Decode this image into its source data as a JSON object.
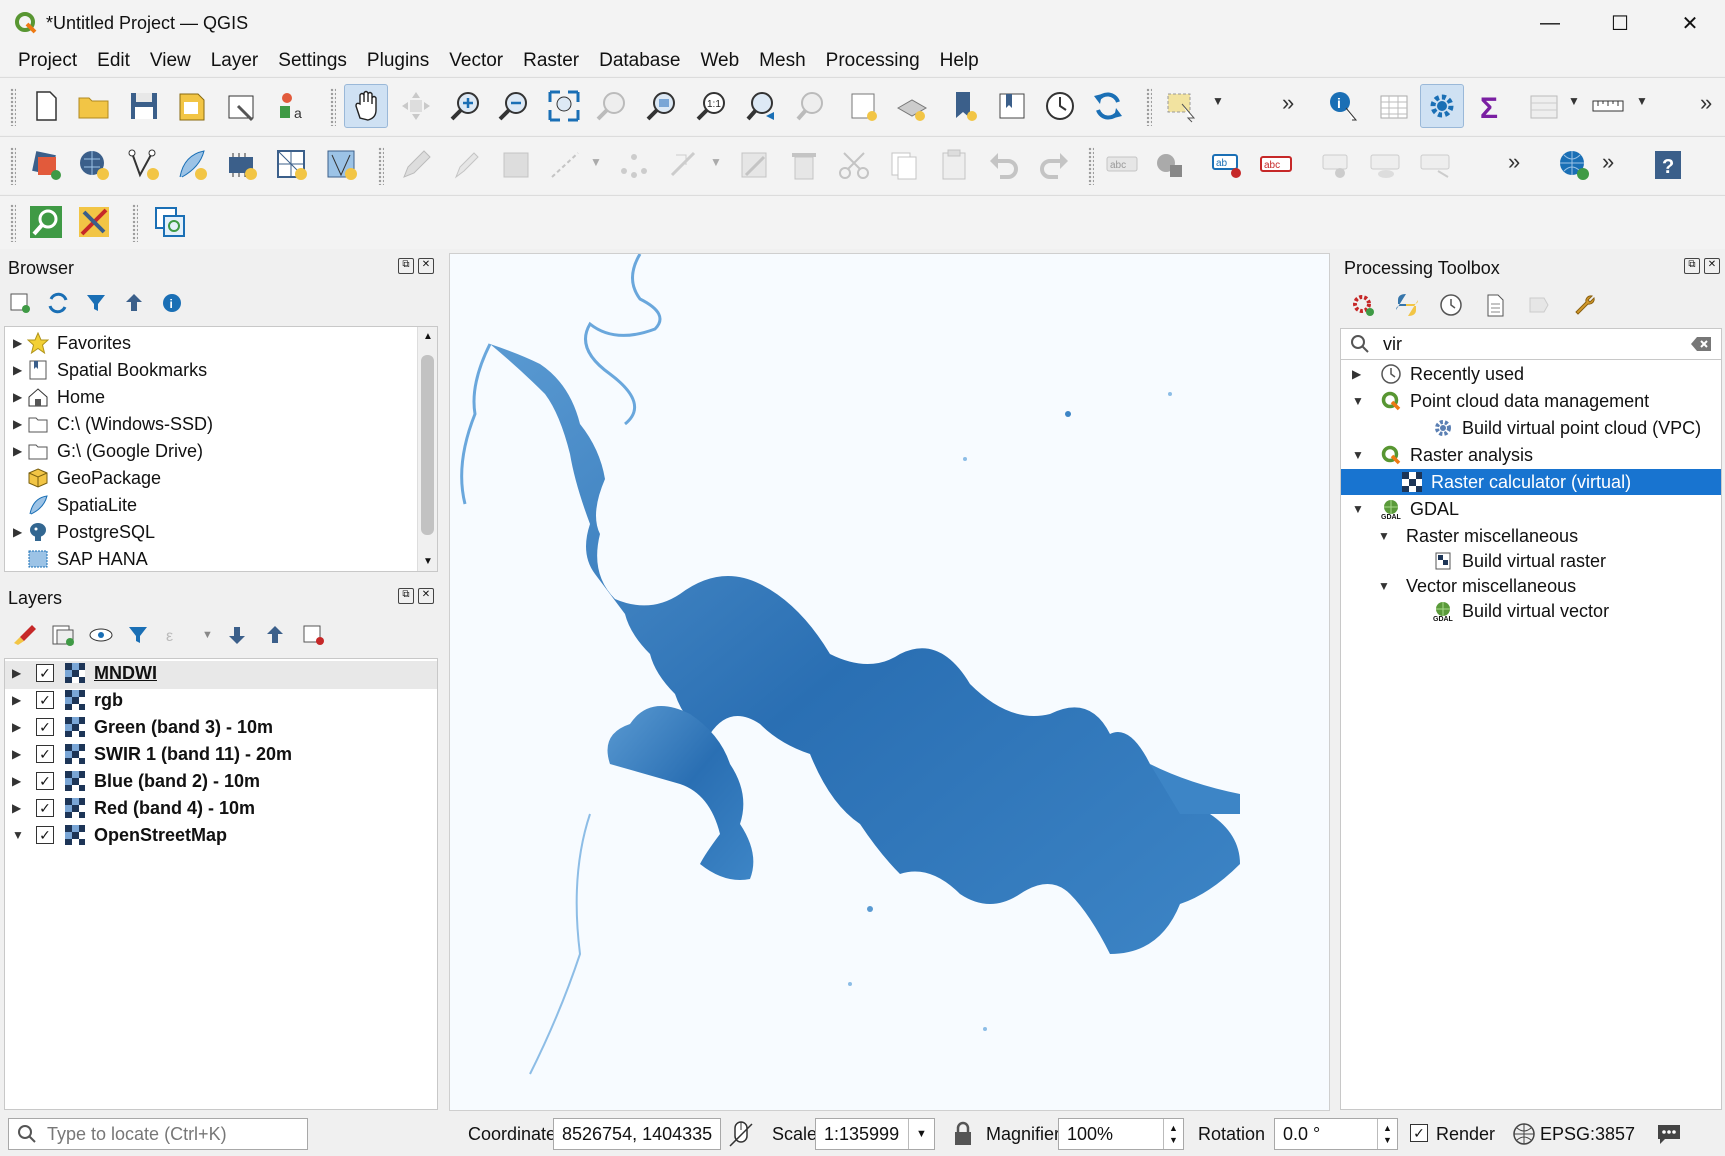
{
  "window": {
    "title": "*Untitled Project — QGIS",
    "controls": {
      "minimize": "—",
      "maximize": "☐",
      "close": "✕"
    }
  },
  "menu": [
    "Project",
    "Edit",
    "View",
    "Layer",
    "Settings",
    "Plugins",
    "Vector",
    "Raster",
    "Database",
    "Web",
    "Mesh",
    "Processing",
    "Help"
  ],
  "browser": {
    "title": "Browser",
    "items": [
      {
        "label": "Favorites",
        "icon": "star-icon",
        "expandable": true
      },
      {
        "label": "Spatial Bookmarks",
        "icon": "bookmarks-icon",
        "expandable": true
      },
      {
        "label": "Home",
        "icon": "home-icon",
        "expandable": true
      },
      {
        "label": "C:\\ (Windows-SSD)",
        "icon": "folder-icon",
        "expandable": true
      },
      {
        "label": "G:\\ (Google Drive)",
        "icon": "folder-icon",
        "expandable": true
      },
      {
        "label": "GeoPackage",
        "icon": "geopackage-icon",
        "expandable": false
      },
      {
        "label": "SpatiaLite",
        "icon": "spatialite-icon",
        "expandable": false
      },
      {
        "label": "PostgreSQL",
        "icon": "postgresql-icon",
        "expandable": true
      },
      {
        "label": "SAP HANA",
        "icon": "sap-hana-icon",
        "expandable": false
      }
    ]
  },
  "layers": {
    "title": "Layers",
    "items": [
      {
        "label": "MNDWI",
        "checked": true,
        "expanded": false,
        "underline": true
      },
      {
        "label": "rgb",
        "checked": true,
        "expanded": false
      },
      {
        "label": "Green (band 3) - 10m",
        "checked": true,
        "expanded": false
      },
      {
        "label": "SWIR 1 (band 11) - 20m",
        "checked": true,
        "expanded": false
      },
      {
        "label": "Blue (band 2) - 10m",
        "checked": true,
        "expanded": false
      },
      {
        "label": "Red (band 4) - 10m",
        "checked": true,
        "expanded": false
      },
      {
        "label": "OpenStreetMap",
        "checked": true,
        "expanded": true
      }
    ]
  },
  "toolbox": {
    "title": "Processing Toolbox",
    "search_value": "vir",
    "tree": [
      {
        "label": "Recently used",
        "level": 0,
        "arrow": "▶",
        "icon": "clock-icon"
      },
      {
        "label": "Point cloud data management",
        "level": 0,
        "arrow": "▼",
        "icon": "qgis-icon"
      },
      {
        "label": "Build virtual point cloud (VPC)",
        "level": 1,
        "arrow": "",
        "icon": "gear-icon"
      },
      {
        "label": "Raster analysis",
        "level": 0,
        "arrow": "▼",
        "icon": "qgis-icon"
      },
      {
        "label": "Raster calculator (virtual)",
        "level": 1,
        "arrow": "",
        "icon": "raster-icon",
        "selected": true
      },
      {
        "label": "GDAL",
        "level": 0,
        "arrow": "▼",
        "icon": "gdal-icon"
      },
      {
        "label": "Raster miscellaneous",
        "level": 1,
        "arrow": "▼",
        "icon": ""
      },
      {
        "label": "Build virtual raster",
        "level": 2,
        "arrow": "",
        "icon": "raster-small-icon"
      },
      {
        "label": "Vector miscellaneous",
        "level": 1,
        "arrow": "▼",
        "icon": ""
      },
      {
        "label": "Build virtual vector",
        "level": 2,
        "arrow": "",
        "icon": "gdal-icon"
      }
    ]
  },
  "status": {
    "locate_placeholder": "Type to locate (Ctrl+K)",
    "coordinate_label": "Coordinate",
    "coordinate_value": "8526754, 1404335",
    "scale_label": "Scale",
    "scale_value": "1:135999",
    "magnifier_label": "Magnifier",
    "magnifier_value": "100%",
    "rotation_label": "Rotation",
    "rotation_value": "0.0 °",
    "render_label": "Render",
    "crs": "EPSG:3857"
  },
  "colors": {
    "water": "#3d85c6",
    "water_dark": "#2a6fb3",
    "map_bg": "#f7fbff",
    "selection": "#1874d0",
    "qgis_green": "#589632"
  }
}
